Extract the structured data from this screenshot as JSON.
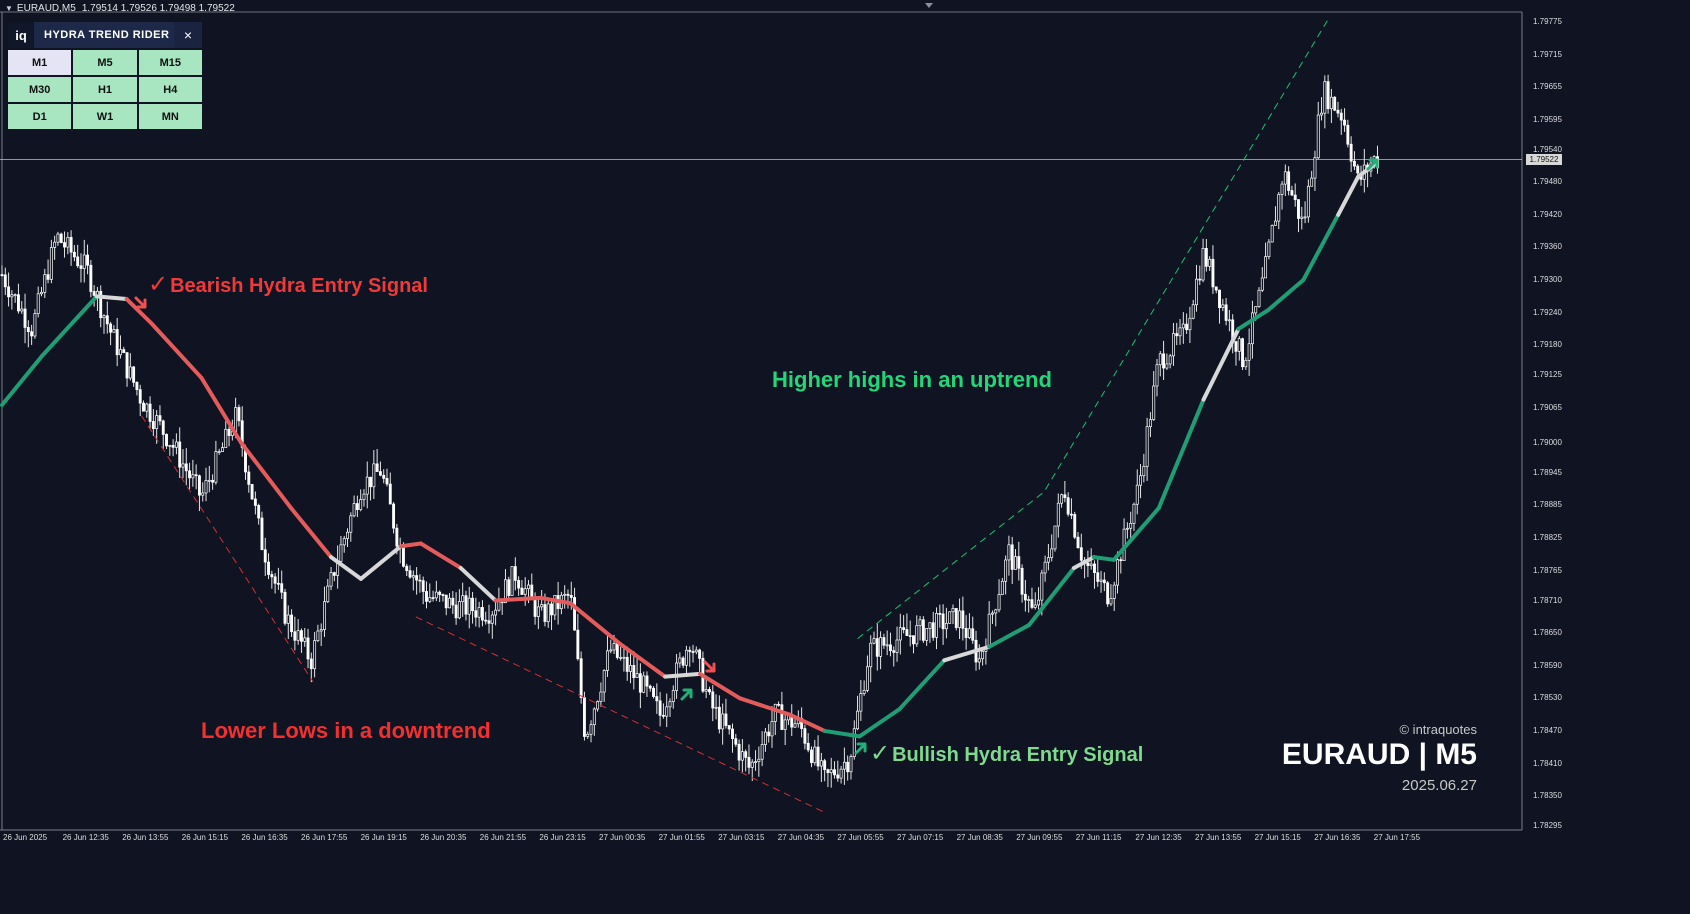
{
  "header": {
    "symbol": "EURAUD,M5",
    "ohlc": "1.79514 1.79526 1.79498 1.79522"
  },
  "panel": {
    "logo": "iq",
    "title": "HYDRA TREND RIDER",
    "close": "×",
    "timeframes": [
      "M1",
      "M5",
      "M15",
      "M30",
      "H1",
      "H4",
      "D1",
      "W1",
      "MN"
    ],
    "active": "M1"
  },
  "annotations": {
    "bearish": "Bearish Hydra Entry Signal",
    "bullish": "Bullish Hydra Entry Signal",
    "lower_lows": "Lower Lows in a downtrend",
    "higher_highs": "Higher highs in an uptrend",
    "check": "✓"
  },
  "watermark": {
    "copyright": "© intraquotes",
    "symbol": "EURAUD | M5",
    "date": "2025.06.27"
  },
  "colors": {
    "background": "#0f1322",
    "bull_line": "#1f9e74",
    "bear_line": "#e45b5b",
    "neutral_line": "#d8d8d8",
    "bear_text": "#f03a3a",
    "bull_text": "#7fd98e",
    "uptrend_text": "#22d67a",
    "downtrend_line": "#d43030",
    "uptrend_line": "#22c06a"
  },
  "chart_data": {
    "type": "candlestick",
    "title": "EURAUD,M5",
    "current_price": "1.79522",
    "ylim": [
      1.78295,
      1.79775
    ],
    "y_ticks": [
      "1.79775",
      "1.79715",
      "1.79655",
      "1.79595",
      "1.79540",
      "1.79480",
      "1.79420",
      "1.79360",
      "1.79300",
      "1.79240",
      "1.79180",
      "1.79125",
      "1.79065",
      "1.79000",
      "1.78945",
      "1.78885",
      "1.78825",
      "1.78765",
      "1.78710",
      "1.78650",
      "1.78590",
      "1.78530",
      "1.78470",
      "1.78410",
      "1.78350",
      "1.78295"
    ],
    "x_ticks": [
      "26 Jun 2025",
      "26 Jun 12:35",
      "26 Jun 13:55",
      "26 Jun 15:15",
      "26 Jun 16:35",
      "26 Jun 17:55",
      "26 Jun 19:15",
      "26 Jun 20:35",
      "26 Jun 21:55",
      "26 Jun 23:15",
      "27 Jun 00:35",
      "27 Jun 01:55",
      "27 Jun 03:15",
      "27 Jun 04:35",
      "27 Jun 05:55",
      "27 Jun 07:15",
      "27 Jun 08:35",
      "27 Jun 09:55",
      "27 Jun 11:15",
      "27 Jun 12:35",
      "27 Jun 13:55",
      "27 Jun 15:15",
      "27 Jun 16:35",
      "27 Jun 17:55"
    ],
    "x_range": [
      0,
      1380
    ],
    "price_path": [
      [
        0,
        1.7931
      ],
      [
        30,
        1.7921
      ],
      [
        55,
        1.7938
      ],
      [
        85,
        1.7932
      ],
      [
        110,
        1.792
      ],
      [
        140,
        1.7908
      ],
      [
        170,
        1.79
      ],
      [
        200,
        1.789
      ],
      [
        235,
        1.7905
      ],
      [
        260,
        1.7882
      ],
      [
        285,
        1.7868
      ],
      [
        310,
        1.786
      ],
      [
        335,
        1.7878
      ],
      [
        360,
        1.7892
      ],
      [
        380,
        1.7895
      ],
      [
        400,
        1.788
      ],
      [
        425,
        1.7872
      ],
      [
        455,
        1.787
      ],
      [
        490,
        1.7869
      ],
      [
        515,
        1.7876
      ],
      [
        540,
        1.7868
      ],
      [
        570,
        1.7872
      ],
      [
        585,
        1.7846
      ],
      [
        610,
        1.7862
      ],
      [
        640,
        1.7856
      ],
      [
        660,
        1.785
      ],
      [
        690,
        1.7864
      ],
      [
        710,
        1.7852
      ],
      [
        750,
        1.784
      ],
      [
        775,
        1.785
      ],
      [
        800,
        1.7848
      ],
      [
        825,
        1.7838
      ],
      [
        850,
        1.7842
      ],
      [
        870,
        1.7862
      ],
      [
        900,
        1.7864
      ],
      [
        930,
        1.7866
      ],
      [
        960,
        1.7868
      ],
      [
        980,
        1.786
      ],
      [
        1010,
        1.788
      ],
      [
        1035,
        1.7868
      ],
      [
        1065,
        1.7892
      ],
      [
        1085,
        1.7878
      ],
      [
        1110,
        1.7872
      ],
      [
        1140,
        1.7892
      ],
      [
        1160,
        1.7915
      ],
      [
        1185,
        1.792
      ],
      [
        1205,
        1.7935
      ],
      [
        1225,
        1.7925
      ],
      [
        1245,
        1.7915
      ],
      [
        1265,
        1.793
      ],
      [
        1285,
        1.795
      ],
      [
        1305,
        1.794
      ],
      [
        1325,
        1.7965
      ],
      [
        1345,
        1.796
      ],
      [
        1360,
        1.7948
      ],
      [
        1375,
        1.79522
      ]
    ],
    "indicator": [
      [
        0,
        1.7907,
        "bull"
      ],
      [
        40,
        1.7916,
        "bull"
      ],
      [
        95,
        1.7927,
        "bull"
      ],
      [
        125,
        1.79265,
        "neutral"
      ],
      [
        150,
        1.7922,
        "bear"
      ],
      [
        200,
        1.7912,
        "bear"
      ],
      [
        240,
        1.79,
        "bear"
      ],
      [
        290,
        1.7888,
        "bear"
      ],
      [
        330,
        1.7879,
        "bear"
      ],
      [
        360,
        1.7875,
        "neutral"
      ],
      [
        400,
        1.7881,
        "neutral"
      ],
      [
        420,
        1.78815,
        "bear"
      ],
      [
        460,
        1.7877,
        "bear"
      ],
      [
        495,
        1.7871,
        "neutral"
      ],
      [
        540,
        1.78715,
        "bear"
      ],
      [
        570,
        1.78705,
        "bear"
      ],
      [
        620,
        1.7863,
        "bear"
      ],
      [
        665,
        1.7857,
        "bear"
      ],
      [
        700,
        1.78575,
        "neutral"
      ],
      [
        740,
        1.7853,
        "bear"
      ],
      [
        790,
        1.785,
        "bear"
      ],
      [
        825,
        1.7847,
        "bear"
      ],
      [
        860,
        1.7846,
        "bull"
      ],
      [
        900,
        1.7851,
        "bull"
      ],
      [
        945,
        1.786,
        "bull"
      ],
      [
        990,
        1.78625,
        "neutral"
      ],
      [
        1030,
        1.78665,
        "bull"
      ],
      [
        1075,
        1.7877,
        "bull"
      ],
      [
        1095,
        1.7879,
        "neutral"
      ],
      [
        1115,
        1.78785,
        "bull"
      ],
      [
        1160,
        1.7888,
        "bull"
      ],
      [
        1205,
        1.7908,
        "bull"
      ],
      [
        1240,
        1.7921,
        "neutral"
      ],
      [
        1270,
        1.79245,
        "bull"
      ],
      [
        1305,
        1.793,
        "bull"
      ],
      [
        1340,
        1.7942,
        "bull"
      ],
      [
        1360,
        1.7949,
        "neutral"
      ],
      [
        1378,
        1.79515,
        "neutral"
      ]
    ],
    "downtrend_lines": [
      [
        [
          140,
          1.7905
        ],
        [
          312,
          1.7856
        ]
      ],
      [
        [
          415,
          1.7868
        ],
        [
          825,
          1.7832
        ]
      ]
    ],
    "uptrend_lines": [
      [
        [
          858,
          1.7864
        ],
        [
          1045,
          1.7891
        ],
        [
          1330,
          1.7978
        ]
      ]
    ]
  }
}
